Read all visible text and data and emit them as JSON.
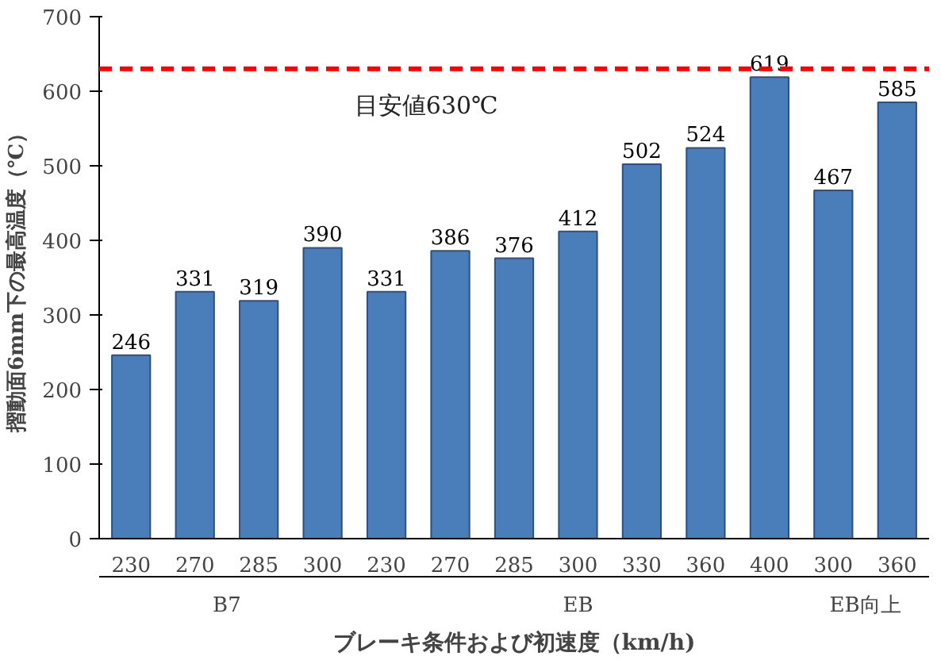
{
  "chart_data": {
    "type": "bar",
    "xlabel": "ブレーキ条件および初速度（km/h)",
    "ylabel": "摺動面6mm下の最高温度（℃）",
    "categories": [
      "230",
      "270",
      "285",
      "300",
      "230",
      "270",
      "285",
      "300",
      "330",
      "360",
      "400",
      "300",
      "360"
    ],
    "values": [
      246,
      331,
      319,
      390,
      331,
      386,
      376,
      412,
      502,
      524,
      619,
      467,
      585
    ],
    "color": "#4a7ebb",
    "data_labels": true,
    "ylim": [
      0,
      700
    ],
    "yticks": [
      0,
      100,
      200,
      300,
      400,
      500,
      600,
      700
    ],
    "grid": false,
    "ref_lines": [
      {
        "axis": "y",
        "value": 630,
        "label": "目安値630℃",
        "color": "#ff0000",
        "line_style": "dashed"
      }
    ],
    "annotations": [
      "B7",
      "EB",
      "EB向上"
    ]
  }
}
